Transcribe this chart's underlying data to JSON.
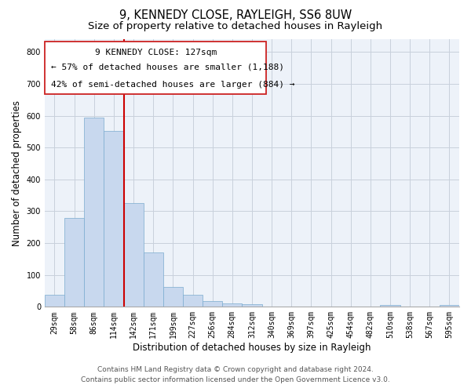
{
  "title": "9, KENNEDY CLOSE, RAYLEIGH, SS6 8UW",
  "subtitle": "Size of property relative to detached houses in Rayleigh",
  "xlabel": "Distribution of detached houses by size in Rayleigh",
  "ylabel": "Number of detached properties",
  "bar_labels": [
    "29sqm",
    "58sqm",
    "86sqm",
    "114sqm",
    "142sqm",
    "171sqm",
    "199sqm",
    "227sqm",
    "256sqm",
    "284sqm",
    "312sqm",
    "340sqm",
    "369sqm",
    "397sqm",
    "425sqm",
    "454sqm",
    "482sqm",
    "510sqm",
    "538sqm",
    "567sqm",
    "595sqm"
  ],
  "bar_values": [
    38,
    278,
    595,
    553,
    325,
    170,
    62,
    38,
    18,
    10,
    8,
    0,
    0,
    0,
    0,
    0,
    0,
    5,
    0,
    0,
    5
  ],
  "bar_color": "#c8d8ee",
  "bar_edge_color": "#7aabcf",
  "vline_color": "#cc0000",
  "annotation_title": "9 KENNEDY CLOSE: 127sqm",
  "annotation_line1": "← 57% of detached houses are smaller (1,188)",
  "annotation_line2": "42% of semi-detached houses are larger (884) →",
  "ylim": [
    0,
    840
  ],
  "yticks": [
    0,
    100,
    200,
    300,
    400,
    500,
    600,
    700,
    800
  ],
  "footer_line1": "Contains HM Land Registry data © Crown copyright and database right 2024.",
  "footer_line2": "Contains public sector information licensed under the Open Government Licence v3.0.",
  "bg_color": "#ffffff",
  "plot_bg_color": "#edf2f9",
  "grid_color": "#c8d0dc",
  "title_fontsize": 10.5,
  "subtitle_fontsize": 9.5,
  "axis_label_fontsize": 8.5,
  "tick_fontsize": 7,
  "annotation_fontsize": 8,
  "footer_fontsize": 6.5
}
